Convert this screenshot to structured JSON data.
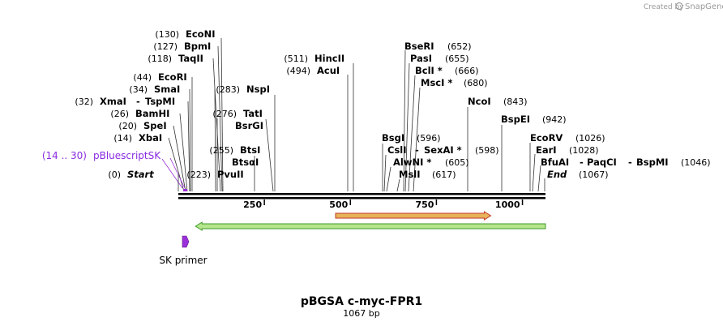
{
  "credit": {
    "prefix": "Created by",
    "brand": "SnapGene"
  },
  "title": {
    "name": "pBGSA c-myc-FPR1",
    "length": "1067 bp"
  },
  "map": {
    "total_bp": 1067
  },
  "sites": [
    {
      "name": "EcoNI",
      "pos": "(130)",
      "bp": 130
    },
    {
      "name": "BpmI",
      "pos": "(127)",
      "bp": 127
    },
    {
      "name": "TaqII",
      "pos": "(118)",
      "bp": 118
    },
    {
      "name": "EcoRI",
      "pos": "(44)",
      "bp": 44
    },
    {
      "name": "SmaI",
      "pos": "(34)",
      "bp": 34
    },
    {
      "name": "XmaI",
      "alt": "TspMI",
      "pos": "(32)",
      "bp": 32
    },
    {
      "name": "BamHI",
      "pos": "(26)",
      "bp": 26
    },
    {
      "name": "SpeI",
      "pos": "(20)",
      "bp": 20
    },
    {
      "name": "XbaI",
      "pos": "(14)",
      "bp": 14
    },
    {
      "name": "Start",
      "pos": "(0)",
      "bp": 0,
      "italic": true
    },
    {
      "name": "NspI",
      "pos": "(283)",
      "bp": 283
    },
    {
      "name": "TatI",
      "pos": "(276)",
      "bp": 276
    },
    {
      "name": "BsrGI",
      "pos": "",
      "bp": 276
    },
    {
      "name": "BtsI",
      "pos": "(255)",
      "bp": 255
    },
    {
      "name": "BtsαI",
      "pos": "",
      "bp": 255
    },
    {
      "name": "PvuII",
      "pos": "(223)",
      "bp": 223
    },
    {
      "name": "HincII",
      "pos": "(511)",
      "bp": 511
    },
    {
      "name": "AcuI",
      "pos": "(494)",
      "bp": 494
    },
    {
      "name": "BseRI",
      "pos": "(652)",
      "bp": 652
    },
    {
      "name": "PasI",
      "pos": "(655)",
      "bp": 655
    },
    {
      "name": "BclI *",
      "pos": "(666)",
      "bp": 666
    },
    {
      "name": "MscI *",
      "pos": "(680)",
      "bp": 680
    },
    {
      "name": "BsgI",
      "pos": "(596)",
      "bp": 596
    },
    {
      "name": "CslI",
      "alt": "SexAI *",
      "pos": "(598)",
      "bp": 598
    },
    {
      "name": "AlwNI *",
      "pos": "(605)",
      "bp": 605
    },
    {
      "name": "MslI",
      "pos": "(617)",
      "bp": 617
    },
    {
      "name": "NcoI",
      "pos": "(843)",
      "bp": 843
    },
    {
      "name": "BspEI",
      "pos": "(942)",
      "bp": 942
    },
    {
      "name": "EcoRV",
      "pos": "(1026)",
      "bp": 1026
    },
    {
      "name": "EarI",
      "pos": "(1028)",
      "bp": 1028
    },
    {
      "name": "BfuAI",
      "alt": "PaqCI",
      "alt2": "BspMI",
      "pos": "(1046)",
      "bp": 1046
    },
    {
      "name": "End",
      "pos": "(1067)",
      "bp": 1067,
      "italic": true
    }
  ],
  "feature": {
    "range": "(14 .. 30)",
    "name": "pBluescriptSK",
    "color": "#9b30d9"
  },
  "ticks": [
    "250",
    "500",
    "750",
    "1000"
  ],
  "tick_values": [
    250,
    500,
    750,
    1000
  ],
  "features": {
    "orange": {
      "from_bp": 457,
      "to_bp": 908,
      "color": "#e8b45a",
      "edge": "#c0392b"
    },
    "green": {
      "from_bp": 50,
      "to_bp": 1067,
      "color": "#b5e58c",
      "edge": "#3e9a2b"
    }
  },
  "primer": {
    "label": "SK primer",
    "color": "#9b30d9",
    "bp": 20
  }
}
